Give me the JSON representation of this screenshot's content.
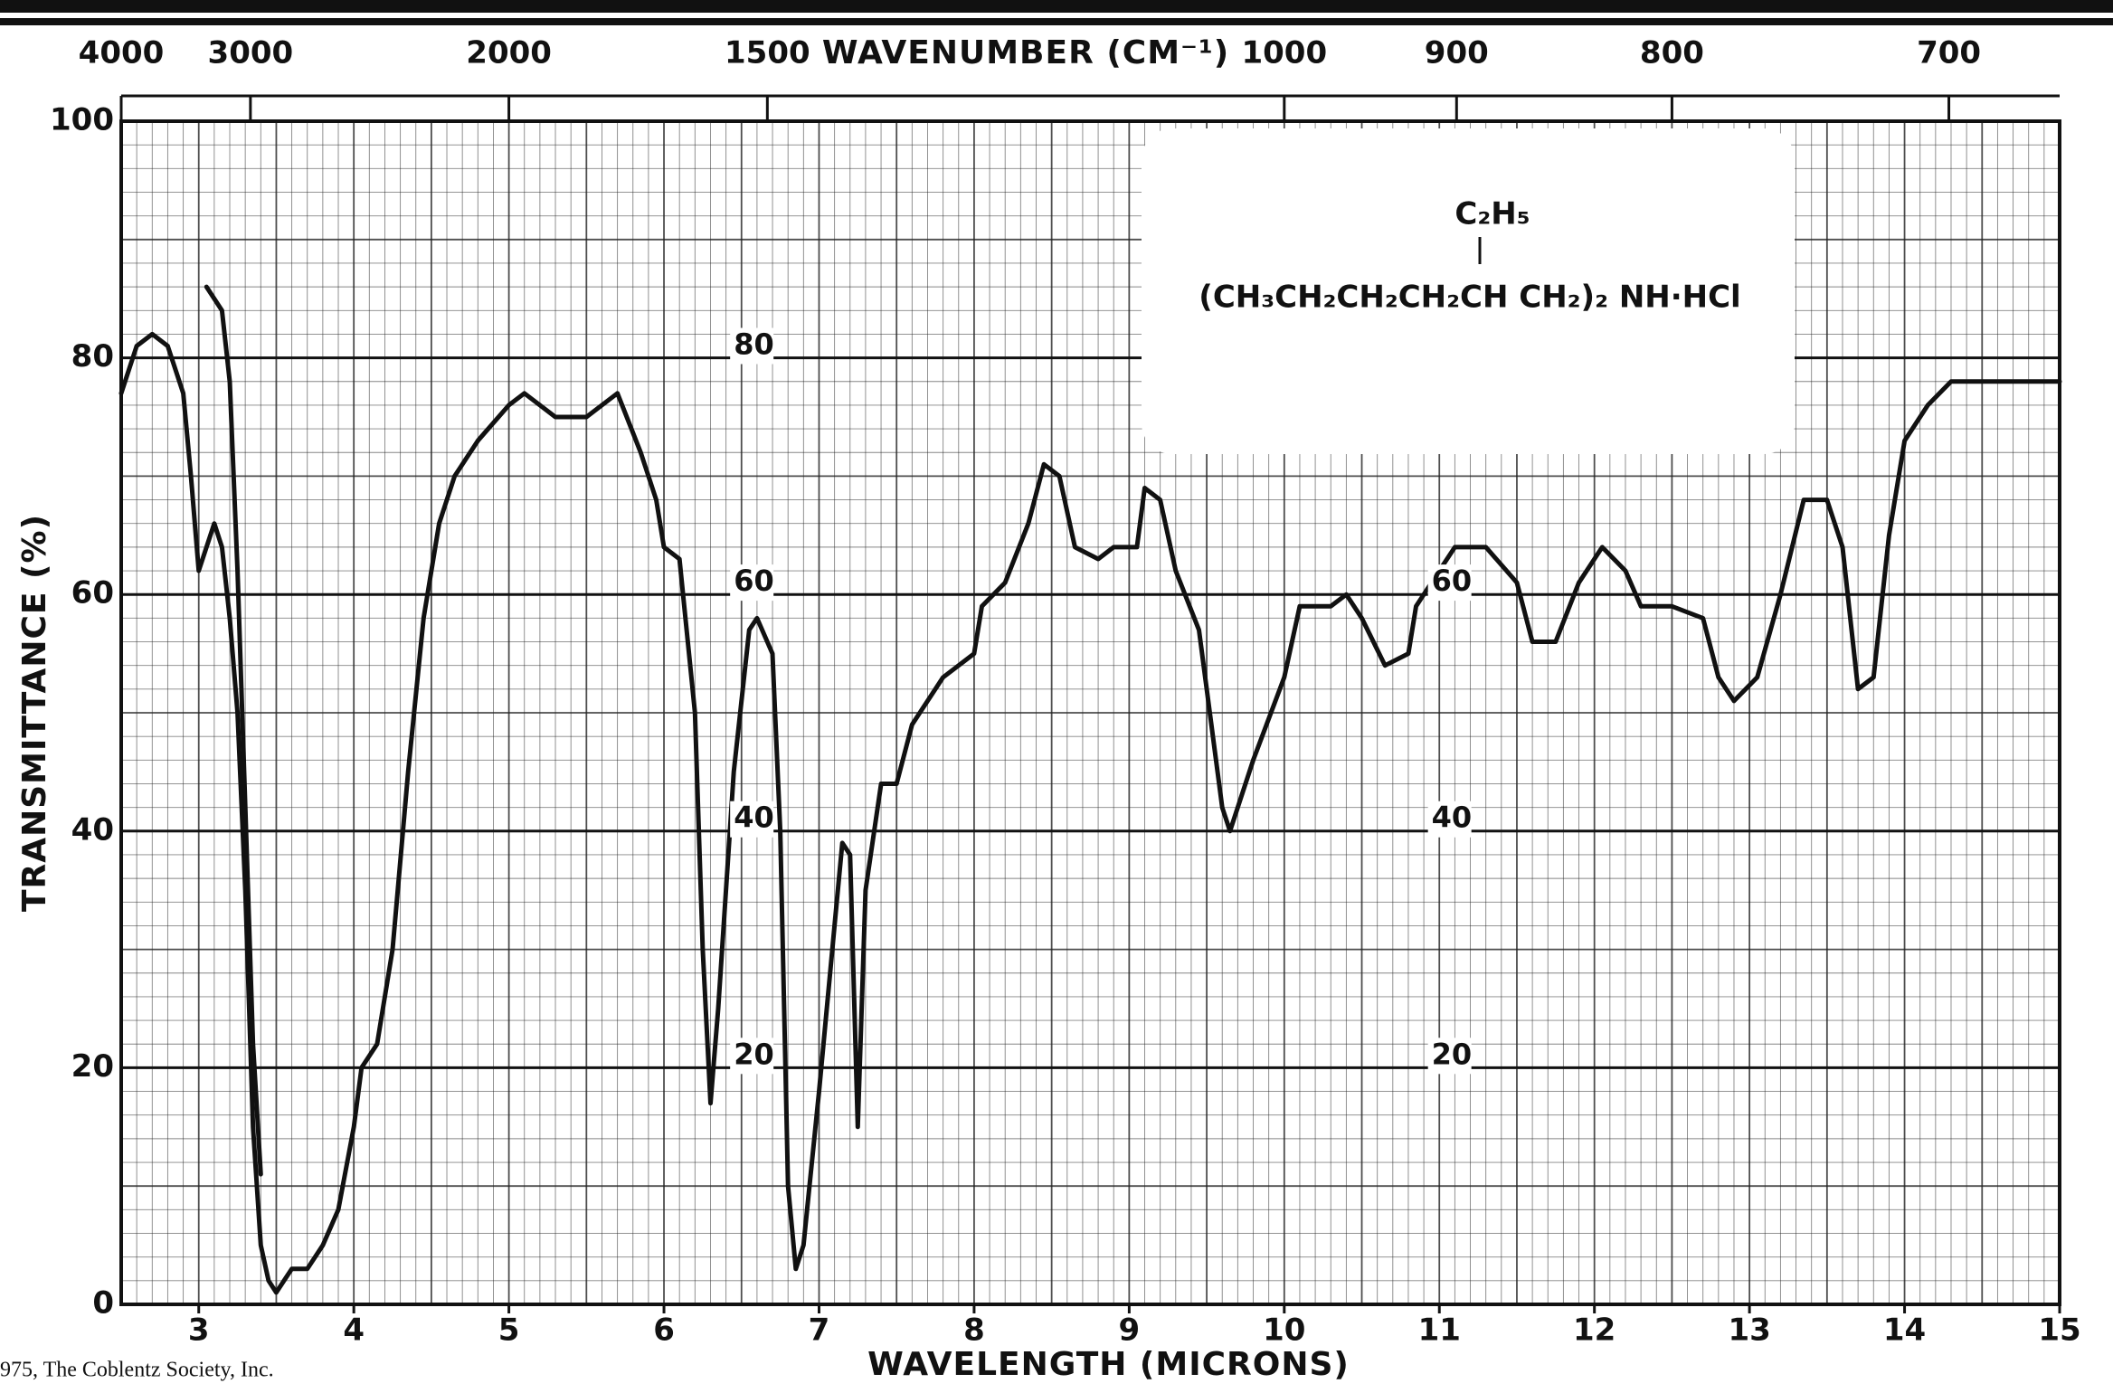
{
  "chart_data": {
    "type": "line",
    "x_label": "WAVELENGTH (MICRONS)",
    "x2_label": "WAVENUMBER (CM⁻¹)",
    "y_label": "TRANSMITTANCE (%)",
    "xlim": [
      2.5,
      15
    ],
    "xticks": [
      3,
      4,
      5,
      6,
      7,
      8,
      9,
      10,
      11,
      12,
      13,
      14,
      15
    ],
    "x2lim": [
      4000,
      666.67
    ],
    "x2scale": "reciprocal",
    "x2ticks": [
      4000,
      3000,
      2000,
      1500,
      1000,
      900,
      800,
      700
    ],
    "ylim": [
      0,
      100
    ],
    "yticks": [
      0,
      20,
      40,
      60,
      80,
      100
    ],
    "grid": true,
    "annotations": [
      {
        "text": "80",
        "x": 6.45,
        "y": 81
      },
      {
        "text": "60",
        "x": 6.45,
        "y": 61
      },
      {
        "text": "40",
        "x": 6.45,
        "y": 41
      },
      {
        "text": "20",
        "x": 6.45,
        "y": 21
      },
      {
        "text": "60",
        "x": 10.95,
        "y": 61
      },
      {
        "text": "40",
        "x": 10.95,
        "y": 41
      },
      {
        "text": "20",
        "x": 10.95,
        "y": 21
      }
    ],
    "series": [
      {
        "color": "#111111",
        "x": [
          2.5,
          2.6,
          2.7,
          2.8,
          2.9,
          2.95,
          3.0,
          3.1,
          3.15,
          3.2,
          3.25,
          3.3,
          3.35,
          3.4,
          3.45,
          3.5,
          3.55,
          3.6,
          3.7,
          3.75,
          3.8,
          3.9,
          4.0,
          4.05,
          4.15,
          4.25,
          4.35,
          4.45,
          4.55,
          4.65,
          4.8,
          5.0,
          5.1,
          5.3,
          5.5,
          5.7,
          5.85,
          5.95,
          6.0,
          6.1,
          6.2,
          6.25,
          6.3,
          6.35,
          6.45,
          6.55,
          6.6,
          6.7,
          6.75,
          6.8,
          6.85,
          6.9,
          7.0,
          7.1,
          7.15,
          7.2,
          7.25,
          7.3,
          7.4,
          7.5,
          7.6,
          7.8,
          8.0,
          8.05,
          8.2,
          8.35,
          8.45,
          8.55,
          8.65,
          8.8,
          8.9,
          9.05,
          9.1,
          9.2,
          9.3,
          9.45,
          9.6,
          9.65,
          9.8,
          10.0,
          10.1,
          10.3,
          10.4,
          10.5,
          10.65,
          10.8,
          10.85,
          11.0,
          11.1,
          11.3,
          11.5,
          11.6,
          11.75,
          11.9,
          12.05,
          12.2,
          12.3,
          12.5,
          12.7,
          12.8,
          12.9,
          13.05,
          13.2,
          13.35,
          13.5,
          13.6,
          13.7,
          13.8,
          13.9,
          14.0,
          14.15,
          14.3,
          14.6,
          15.0
        ],
        "values": [
          77,
          81,
          82,
          81,
          77,
          70,
          62,
          66,
          64,
          58,
          50,
          35,
          15,
          5,
          2,
          1,
          2,
          3,
          3,
          4,
          5,
          8,
          15,
          20,
          22,
          30,
          45,
          58,
          66,
          70,
          73,
          76,
          77,
          75,
          75,
          77,
          72,
          68,
          64,
          63,
          50,
          30,
          17,
          25,
          45,
          57,
          58,
          55,
          40,
          10,
          3,
          5,
          18,
          32,
          39,
          38,
          15,
          35,
          44,
          44,
          49,
          53,
          55,
          59,
          61,
          66,
          71,
          70,
          64,
          63,
          64,
          64,
          69,
          68,
          62,
          57,
          42,
          40,
          46,
          53,
          59,
          59,
          60,
          58,
          54,
          55,
          59,
          62,
          64,
          64,
          61,
          56,
          56,
          61,
          64,
          62,
          59,
          59,
          58,
          53,
          51,
          53,
          60,
          68,
          68,
          64,
          52,
          53,
          65,
          73,
          76,
          78,
          78,
          78
        ]
      },
      {
        "color": "#111111",
        "x": [
          3.05,
          3.15,
          3.2,
          3.25,
          3.3,
          3.35,
          3.4
        ],
        "values": [
          86,
          84,
          78,
          62,
          42,
          22,
          11
        ]
      }
    ]
  },
  "structure": {
    "substituent": "C₂H₅",
    "formula": "(CH₃CH₂CH₂CH₂CH CH₂)₂ NH·HCl"
  },
  "copyright": "975, The Coblentz Society, Inc."
}
